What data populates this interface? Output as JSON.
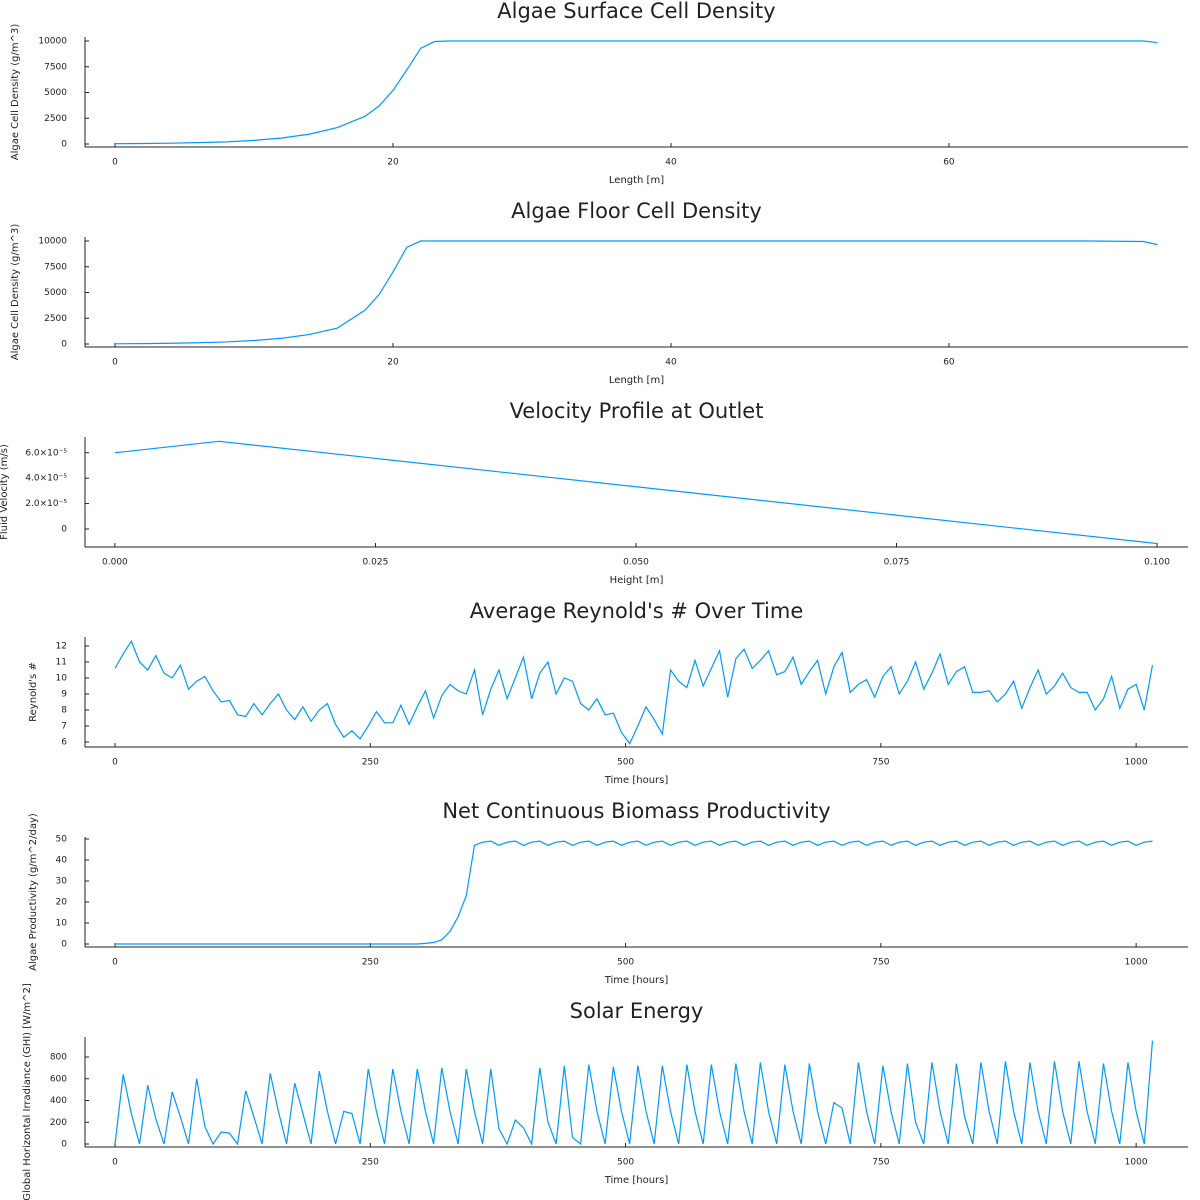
{
  "chart_data": [
    {
      "type": "line",
      "title": "Algae Surface Cell Density",
      "xlabel": "Length [m]",
      "ylabel": "Algae Cell Density (g/m^3)",
      "color": "#009af9",
      "x": [
        0,
        2,
        4,
        6,
        8,
        10,
        12,
        14,
        16,
        18,
        19,
        20,
        21,
        22,
        23,
        24,
        30,
        40,
        50,
        60,
        70,
        74,
        75
      ],
      "values": [
        30,
        50,
        80,
        130,
        210,
        350,
        580,
        960,
        1600,
        2700,
        3700,
        5200,
        7200,
        9300,
        9950,
        10000,
        10000,
        10000,
        10000,
        10000,
        10000,
        10000,
        9850
      ],
      "xlim": [
        -2.16,
        77.2
      ],
      "ylim": [
        -291,
        10390
      ],
      "xticks": [
        0,
        20,
        40,
        60
      ],
      "yticks": [
        0,
        2500,
        5000,
        7500,
        10000
      ]
    },
    {
      "type": "line",
      "title": "Algae Floor Cell Density",
      "xlabel": "Length [m]",
      "ylabel": "Algae Cell Density (g/m^3)",
      "color": "#009af9",
      "x": [
        0,
        2,
        4,
        6,
        8,
        10,
        12,
        14,
        16,
        18,
        19,
        20,
        21,
        22,
        30,
        40,
        50,
        60,
        70,
        74,
        75
      ],
      "values": [
        20,
        40,
        70,
        120,
        200,
        340,
        560,
        930,
        1550,
        3300,
        4800,
        7000,
        9400,
        10000,
        10000,
        10000,
        10000,
        10000,
        10000,
        9950,
        9650
      ],
      "xlim": [
        -2.16,
        77.2
      ],
      "ylim": [
        -291,
        10390
      ],
      "xticks": [
        0,
        20,
        40,
        60
      ],
      "yticks": [
        0,
        2500,
        5000,
        7500,
        10000
      ]
    },
    {
      "type": "line",
      "title": "Velocity Profile at Outlet",
      "xlabel": "Height [m]",
      "ylabel": "Fluid Velocity (m/s)",
      "color": "#009af9",
      "x": [
        0,
        0.01,
        0.1
      ],
      "values": [
        6e-05,
        6.9e-05,
        -1.15e-05
      ],
      "xlim": [
        -0.00287,
        0.10297
      ],
      "ylim": [
        -1.42e-05,
        7.24e-05
      ],
      "xticks": [
        {
          "value": 0,
          "label": "0.000"
        },
        {
          "value": 0.025,
          "label": "0.025"
        },
        {
          "value": 0.05,
          "label": "0.050"
        },
        {
          "value": 0.075,
          "label": "0.075"
        },
        {
          "value": 0.1,
          "label": "0.100"
        }
      ],
      "yticks": [
        0,
        {
          "value": 2e-05,
          "label": "2.0×10⁻⁵"
        },
        {
          "value": 4e-05,
          "label": "4.0×10⁻⁵"
        },
        {
          "value": 6e-05,
          "label": "6.0×10⁻⁵"
        }
      ]
    },
    {
      "type": "line",
      "title": "Average Reynold's # Over Time",
      "xlabel": "Time [hours]",
      "ylabel": "Reynold's #",
      "color": "#009af9",
      "x": [
        0,
        8,
        16,
        24,
        32,
        40,
        48,
        56,
        64,
        72,
        80,
        88,
        96,
        104,
        112,
        120,
        128,
        136,
        144,
        152,
        160,
        168,
        176,
        184,
        192,
        200,
        208,
        216,
        224,
        232,
        240,
        248,
        256,
        264,
        272,
        280,
        288,
        296,
        304,
        312,
        320,
        328,
        336,
        344,
        352,
        360,
        368,
        376,
        384,
        392,
        400,
        408,
        416,
        424,
        432,
        440,
        448,
        456,
        464,
        472,
        480,
        488,
        496,
        504,
        512,
        520,
        528,
        536,
        544,
        552,
        560,
        568,
        576,
        584,
        592,
        600,
        608,
        616,
        624,
        632,
        640,
        648,
        656,
        664,
        672,
        680,
        688,
        696,
        704,
        712,
        720,
        728,
        736,
        744,
        752,
        760,
        768,
        776,
        784,
        792,
        800,
        808,
        816,
        824,
        832,
        840,
        848,
        856,
        864,
        872,
        880,
        888,
        896,
        904,
        912,
        920,
        928,
        936,
        944,
        952,
        960,
        968,
        976,
        984,
        992,
        1000,
        1008,
        1016
      ],
      "values": [
        10.6,
        11.5,
        12.3,
        11,
        10.5,
        11.4,
        10.3,
        10,
        10.8,
        9.3,
        9.8,
        10.1,
        9.2,
        8.5,
        8.6,
        7.7,
        7.6,
        8.4,
        7.7,
        8.4,
        9,
        8,
        7.4,
        8.2,
        7.3,
        8,
        8.4,
        7.1,
        6.3,
        6.7,
        6.2,
        7,
        7.9,
        7.2,
        7.2,
        8.3,
        7.1,
        8.2,
        9.2,
        7.5,
        8.9,
        9.6,
        9.2,
        9,
        10.5,
        7.7,
        9.3,
        10.5,
        8.7,
        10,
        11.3,
        8.7,
        10.3,
        11,
        9,
        10,
        9.8,
        8.4,
        8,
        8.7,
        7.7,
        7.8,
        6.6,
        5.9,
        7,
        8.2,
        7.4,
        6.5,
        10.5,
        9.8,
        9.4,
        11.1,
        9.5,
        10.6,
        11.7,
        8.8,
        11.2,
        11.8,
        10.6,
        11.1,
        11.7,
        10.2,
        10.4,
        11.3,
        9.6,
        10.4,
        11.1,
        9,
        10.7,
        11.6,
        9.1,
        9.6,
        9.9,
        8.8,
        10.1,
        10.7,
        9,
        9.8,
        11,
        9.3,
        10.3,
        11.5,
        9.6,
        10.4,
        10.7,
        9.1,
        9.1,
        9.2,
        8.5,
        9,
        9.8,
        8.1,
        9.4,
        10.5,
        9,
        9.5,
        10.3,
        9.4,
        9.1,
        9.1,
        8,
        8.7,
        10.1,
        8.1,
        9.3,
        9.6,
        8,
        10.8
      ],
      "xlim": [
        -29.4,
        1050.8
      ],
      "ylim": [
        5.69,
        12.56
      ],
      "xticks": [
        0,
        250,
        500,
        750,
        1000
      ],
      "yticks": [
        6,
        7,
        8,
        9,
        10,
        11,
        12
      ]
    },
    {
      "type": "line",
      "title": "Net Continuous Biomass Productivity",
      "xlabel": "Time [hours]",
      "ylabel": "Algae Productivity (g/m^2/day)",
      "color": "#009af9",
      "x": [
        0,
        8,
        16,
        24,
        32,
        40,
        48,
        56,
        64,
        72,
        80,
        88,
        96,
        104,
        112,
        120,
        128,
        136,
        144,
        152,
        160,
        168,
        176,
        184,
        192,
        200,
        208,
        216,
        224,
        232,
        240,
        248,
        256,
        264,
        272,
        280,
        288,
        296,
        304,
        312,
        320,
        328,
        336,
        344,
        352,
        360,
        368,
        376,
        384,
        392,
        400,
        408,
        416,
        424,
        432,
        440,
        448,
        456,
        464,
        472,
        480,
        488,
        496,
        504,
        512,
        520,
        528,
        536,
        544,
        552,
        560,
        568,
        576,
        584,
        592,
        600,
        608,
        616,
        624,
        632,
        640,
        648,
        656,
        664,
        672,
        680,
        688,
        696,
        704,
        712,
        720,
        728,
        736,
        744,
        752,
        760,
        768,
        776,
        784,
        792,
        800,
        808,
        816,
        824,
        832,
        840,
        848,
        856,
        864,
        872,
        880,
        888,
        896,
        904,
        912,
        920,
        928,
        936,
        944,
        952,
        960,
        968,
        976,
        984,
        992,
        1000,
        1008,
        1016
      ],
      "values": [
        0,
        0,
        0,
        0,
        0,
        0,
        0,
        0,
        0,
        0,
        0,
        0,
        0,
        0,
        0,
        0,
        0,
        0,
        0,
        0,
        0,
        0,
        0,
        0,
        0,
        0,
        0,
        0,
        0,
        0,
        0,
        0,
        0,
        0,
        0,
        0,
        0,
        0,
        0.3,
        0.7,
        2,
        6,
        13,
        23,
        47,
        48.5,
        49,
        47,
        48.5,
        49,
        47,
        48.5,
        49,
        47,
        48.5,
        49,
        47,
        48.5,
        49,
        47,
        48.5,
        49,
        47,
        48.5,
        49,
        47,
        48.5,
        49,
        47,
        48.5,
        49,
        47,
        48.5,
        49,
        47,
        48.5,
        49,
        47,
        48.5,
        49,
        47,
        48.5,
        49,
        47,
        48.5,
        49,
        47,
        48.5,
        49,
        47,
        48.5,
        49,
        47,
        48.5,
        49,
        47,
        48.5,
        49,
        47,
        48.5,
        49,
        47,
        48.5,
        49,
        47,
        48.5,
        49,
        47,
        48.5,
        49,
        47,
        48.5,
        49,
        47,
        48.5,
        49,
        47,
        48.5,
        49,
        47,
        48.5,
        49,
        47,
        48.5,
        49,
        47,
        48.5,
        49
      ],
      "xlim": [
        -29.4,
        1050.8
      ],
      "ylim": [
        -1.43,
        50.95
      ],
      "xticks": [
        0,
        250,
        500,
        750,
        1000
      ],
      "yticks": [
        0,
        10,
        20,
        30,
        40,
        50
      ]
    },
    {
      "type": "line",
      "title": "Solar Energy",
      "xlabel": "Time [hours]",
      "ylabel": "Global Horizontal Irradiance (GHI) [W/m^2]",
      "color": "#009af9",
      "x": [
        0,
        8,
        16,
        24,
        32,
        40,
        48,
        56,
        64,
        72,
        80,
        88,
        96,
        104,
        112,
        120,
        128,
        136,
        144,
        152,
        160,
        168,
        176,
        184,
        192,
        200,
        208,
        216,
        224,
        232,
        240,
        248,
        256,
        264,
        272,
        280,
        288,
        296,
        304,
        312,
        320,
        328,
        336,
        344,
        352,
        360,
        368,
        376,
        384,
        392,
        400,
        408,
        416,
        424,
        432,
        440,
        448,
        456,
        464,
        472,
        480,
        488,
        496,
        504,
        512,
        520,
        528,
        536,
        544,
        552,
        560,
        568,
        576,
        584,
        592,
        600,
        608,
        616,
        624,
        632,
        640,
        648,
        656,
        664,
        672,
        680,
        688,
        696,
        704,
        712,
        720,
        728,
        736,
        744,
        752,
        760,
        768,
        776,
        784,
        792,
        800,
        808,
        816,
        824,
        832,
        840,
        848,
        856,
        864,
        872,
        880,
        888,
        896,
        904,
        912,
        920,
        928,
        936,
        944,
        952,
        960,
        968,
        976,
        984,
        992,
        1000,
        1008,
        1016
      ],
      "values": [
        0,
        640,
        280,
        0,
        540,
        230,
        0,
        480,
        250,
        0,
        600,
        160,
        0,
        110,
        100,
        0,
        490,
        250,
        0,
        650,
        300,
        0,
        560,
        280,
        0,
        670,
        300,
        0,
        300,
        280,
        0,
        690,
        300,
        0,
        690,
        300,
        0,
        690,
        300,
        0,
        700,
        300,
        0,
        690,
        300,
        0,
        690,
        140,
        0,
        220,
        150,
        0,
        700,
        200,
        0,
        720,
        60,
        0,
        730,
        300,
        0,
        710,
        300,
        0,
        720,
        300,
        0,
        720,
        300,
        0,
        730,
        300,
        0,
        730,
        300,
        0,
        740,
        300,
        0,
        750,
        300,
        0,
        730,
        300,
        0,
        740,
        300,
        0,
        380,
        330,
        0,
        750,
        300,
        0,
        720,
        300,
        0,
        740,
        200,
        0,
        750,
        300,
        0,
        740,
        250,
        0,
        750,
        300,
        0,
        760,
        300,
        0,
        750,
        300,
        0,
        760,
        300,
        0,
        760,
        300,
        0,
        740,
        300,
        0,
        750,
        300,
        0,
        950
      ],
      "xlim": [
        -29.4,
        1050.8
      ],
      "ylim": [
        -27.6,
        984
      ],
      "xticks": [
        0,
        250,
        500,
        750,
        1000
      ],
      "yticks": [
        0,
        200,
        400,
        600,
        800
      ]
    }
  ]
}
